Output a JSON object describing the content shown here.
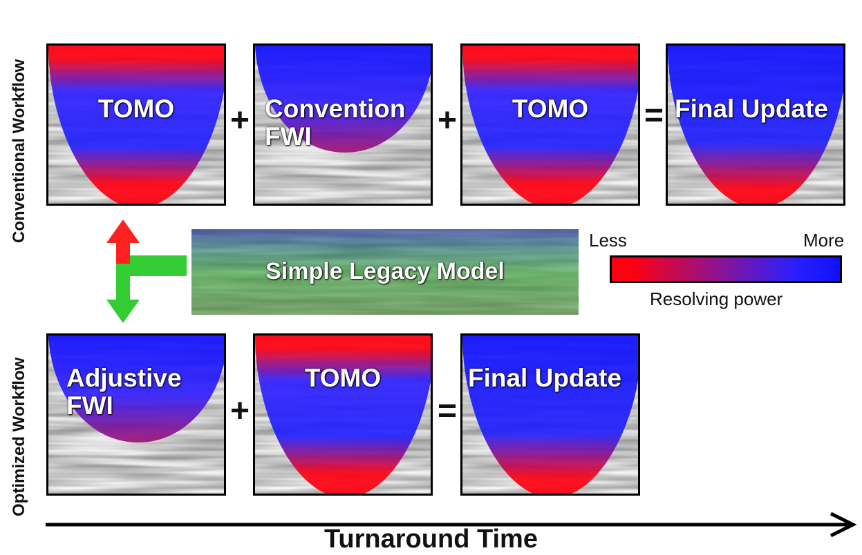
{
  "side_labels": {
    "conventional": "Conventional Workflow",
    "optimized": "Optimized Workflow"
  },
  "conventional_panels": [
    {
      "label_lines": [
        "TOMO"
      ],
      "fill": "tomo"
    },
    {
      "label_lines": [
        "Convention",
        "FWI"
      ],
      "fill": "fwi"
    },
    {
      "label_lines": [
        "TOMO"
      ],
      "fill": "tomo"
    },
    {
      "label_lines": [
        "Final Update"
      ],
      "fill": "final"
    }
  ],
  "optimized_panels": [
    {
      "label_lines": [
        "Adjustive",
        "FWI"
      ],
      "fill": "fwi"
    },
    {
      "label_lines": [
        "TOMO"
      ],
      "fill": "tomo"
    },
    {
      "label_lines": [
        "Final Update"
      ],
      "fill": "final"
    }
  ],
  "operators": {
    "conv_plus_1": "+",
    "conv_plus_2": "+",
    "conv_equals": "=",
    "opt_plus": "+",
    "opt_equals": "="
  },
  "legacy_model_label": "Simple Legacy Model",
  "legend": {
    "less": "Less",
    "more": "More",
    "title": "Resolving power"
  },
  "axis_title": "Turnaround Time",
  "colors": {
    "low_resolving": "#ff0010",
    "high_resolving": "#1010ff",
    "arrow_up": "#ff2020",
    "arrow_down": "#33cc33",
    "legacy_green": "#3aa53a"
  }
}
